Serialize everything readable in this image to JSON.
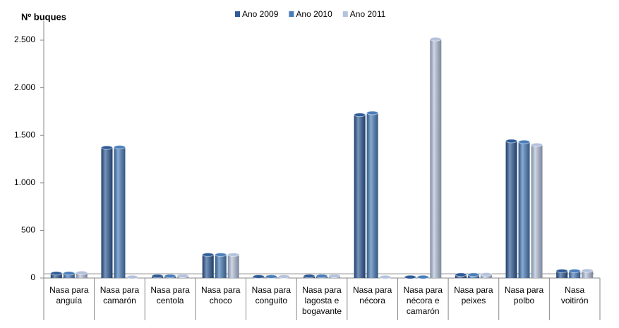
{
  "chart_data": {
    "type": "bar",
    "y_label": "Nº buques",
    "categories": [
      "Nasa para anguía",
      "Nasa para camarón",
      "Nasa para centola",
      "Nasa para choco",
      "Nasa para conguito",
      "Nasa para lagosta e bogavante",
      "Nasa para nécora",
      "Nasa para nécora e camarón",
      "Nasa para peixes",
      "Nasa para polbo",
      "Nasa voitirón"
    ],
    "series": [
      {
        "name": "Ano 2009",
        "color": "#2f5b97",
        "values": [
          50,
          1370,
          20,
          245,
          15,
          20,
          1715,
          10,
          35,
          1440,
          75
        ]
      },
      {
        "name": "Ano 2010",
        "color": "#4a7ebb",
        "values": [
          50,
          1375,
          20,
          245,
          15,
          20,
          1735,
          10,
          35,
          1430,
          75
        ]
      },
      {
        "name": "Ano 2011",
        "color": "#b4c2dc",
        "values": [
          55,
          10,
          22,
          245,
          15,
          22,
          10,
          2510,
          38,
          1400,
          78
        ]
      }
    ],
    "ylim": [
      0,
      2700
    ],
    "yticks": [
      0,
      500,
      {
        "value": 1000,
        "label": "1.000"
      },
      {
        "value": 1500,
        "label": "1.500"
      },
      {
        "value": 2000,
        "label": "2.000"
      },
      {
        "value": 2500,
        "label": "2.500"
      }
    ],
    "legend": "top"
  }
}
